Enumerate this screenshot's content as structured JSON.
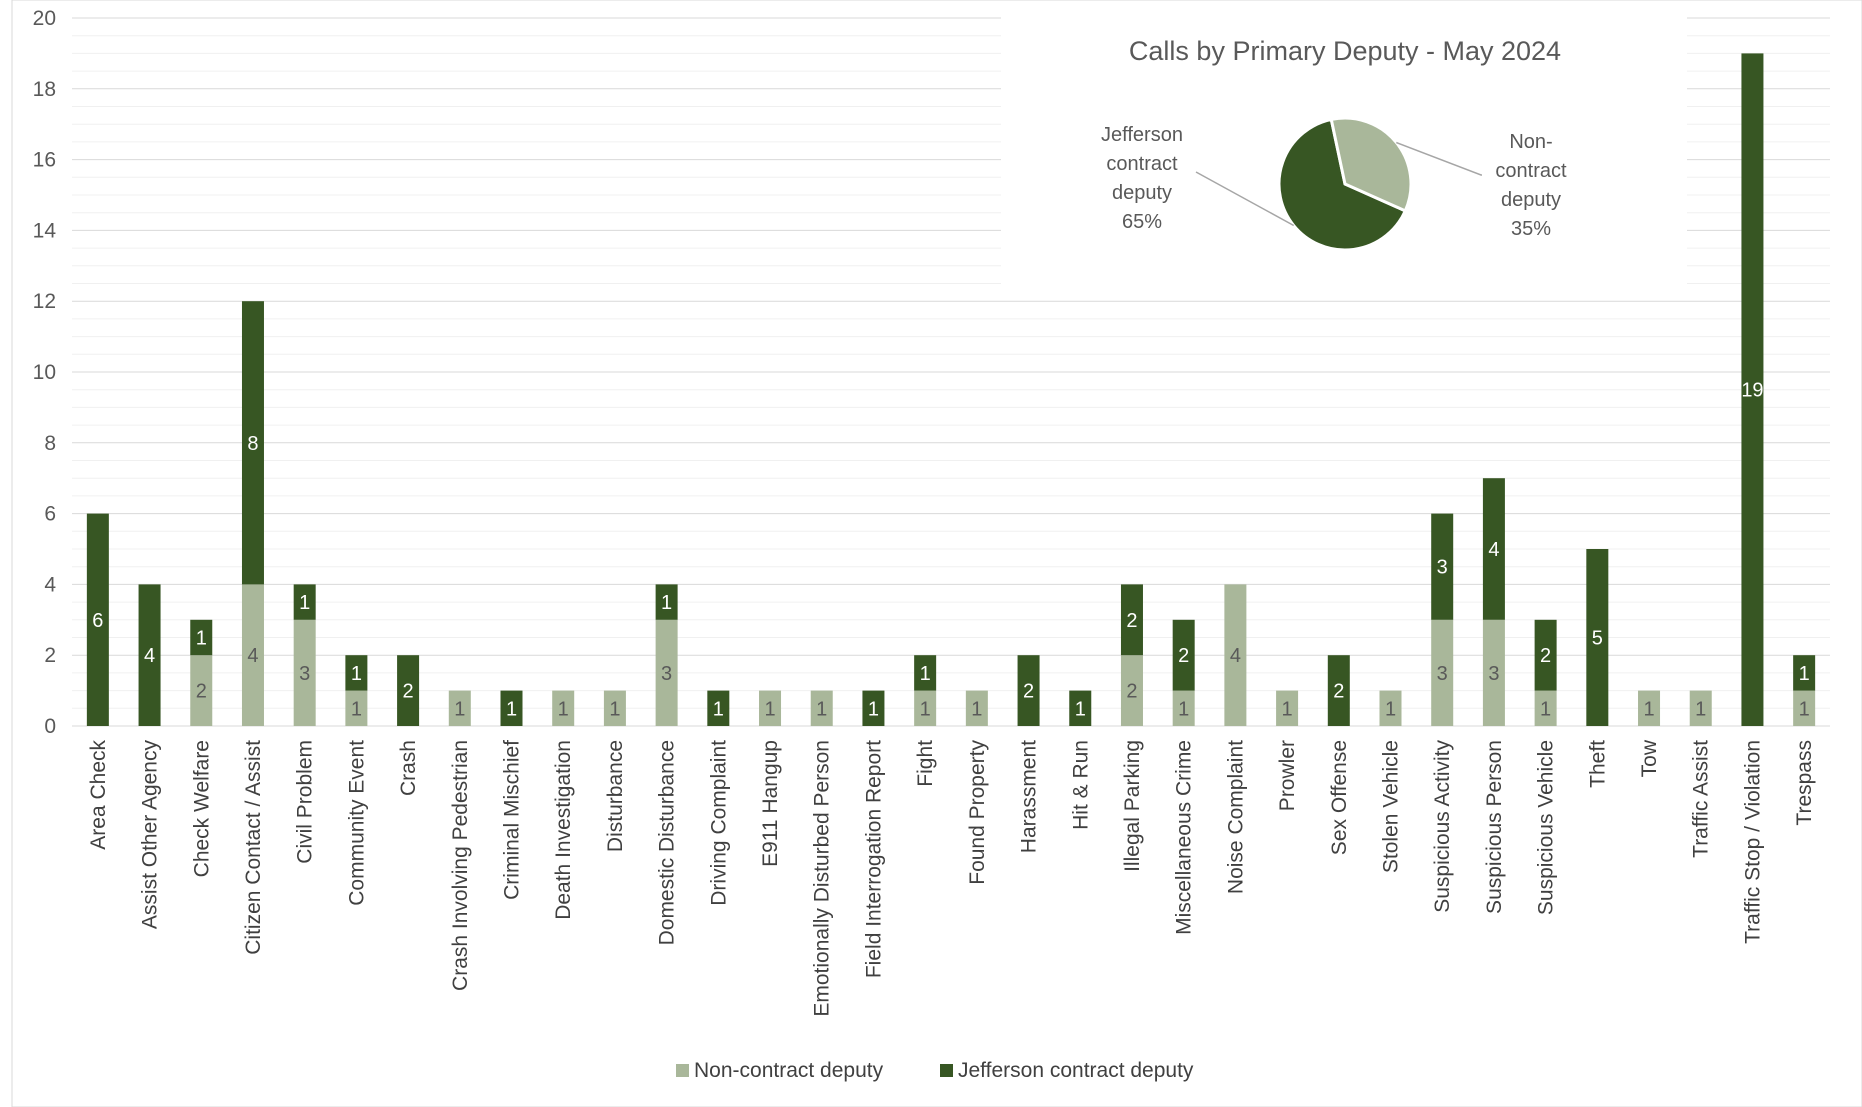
{
  "chart_data": [
    {
      "type": "bar",
      "stacked": true,
      "ylim": [
        0,
        20
      ],
      "y_ticks": [
        0,
        2,
        4,
        6,
        8,
        10,
        12,
        14,
        16,
        18,
        20
      ],
      "grid": true,
      "legend_position": "bottom",
      "categories": [
        "Area Check",
        "Assist Other Agency",
        "Check Welfare",
        "Citizen Contact / Assist",
        "Civil Problem",
        "Community Event",
        "Crash",
        "Crash Involving Pedestrian",
        "Criminal Mischief",
        "Death Investigation",
        "Disturbance",
        "Domestic Disturbance",
        "Driving Complaint",
        "E911 Hangup",
        "Emotionally Disturbed Person",
        "Field Interrogation Report",
        "Fight",
        "Found Property",
        "Harassment",
        "Hit & Run",
        "Illegal Parking",
        "Miscellaneous Crime",
        "Noise Complaint",
        "Prowler",
        "Sex Offense",
        "Stolen Vehicle",
        "Suspicious Activity",
        "Suspicious Person",
        "Suspicious Vehicle",
        "Theft",
        "Tow",
        "Traffic Assist",
        "Traffic Stop / Violation",
        "Trespass"
      ],
      "series": [
        {
          "name": "Non-contract deputy",
          "color": "#a9b79a",
          "values": [
            0,
            0,
            2,
            4,
            3,
            1,
            0,
            1,
            0,
            1,
            1,
            3,
            0,
            1,
            1,
            0,
            1,
            1,
            0,
            0,
            2,
            1,
            4,
            1,
            0,
            1,
            3,
            3,
            1,
            0,
            1,
            1,
            0,
            1
          ]
        },
        {
          "name": "Jefferson contract deputy",
          "color": "#375623",
          "values": [
            6,
            4,
            1,
            8,
            1,
            1,
            2,
            0,
            1,
            0,
            0,
            1,
            1,
            0,
            0,
            1,
            1,
            0,
            2,
            1,
            2,
            2,
            0,
            0,
            2,
            0,
            3,
            4,
            2,
            5,
            0,
            0,
            19,
            1
          ]
        }
      ]
    },
    {
      "type": "pie",
      "title": "Calls by Primary Deputy - May 2024",
      "slices": [
        {
          "name": "Jefferson contract deputy",
          "value": 65,
          "color": "#375623",
          "label_lines": [
            "Jefferson",
            "contract",
            "deputy",
            "65%"
          ]
        },
        {
          "name": "Non-contract deputy",
          "value": 35,
          "color": "#a9b79a",
          "label_lines": [
            "Non-",
            "contract",
            "deputy",
            "35%"
          ]
        }
      ]
    }
  ]
}
